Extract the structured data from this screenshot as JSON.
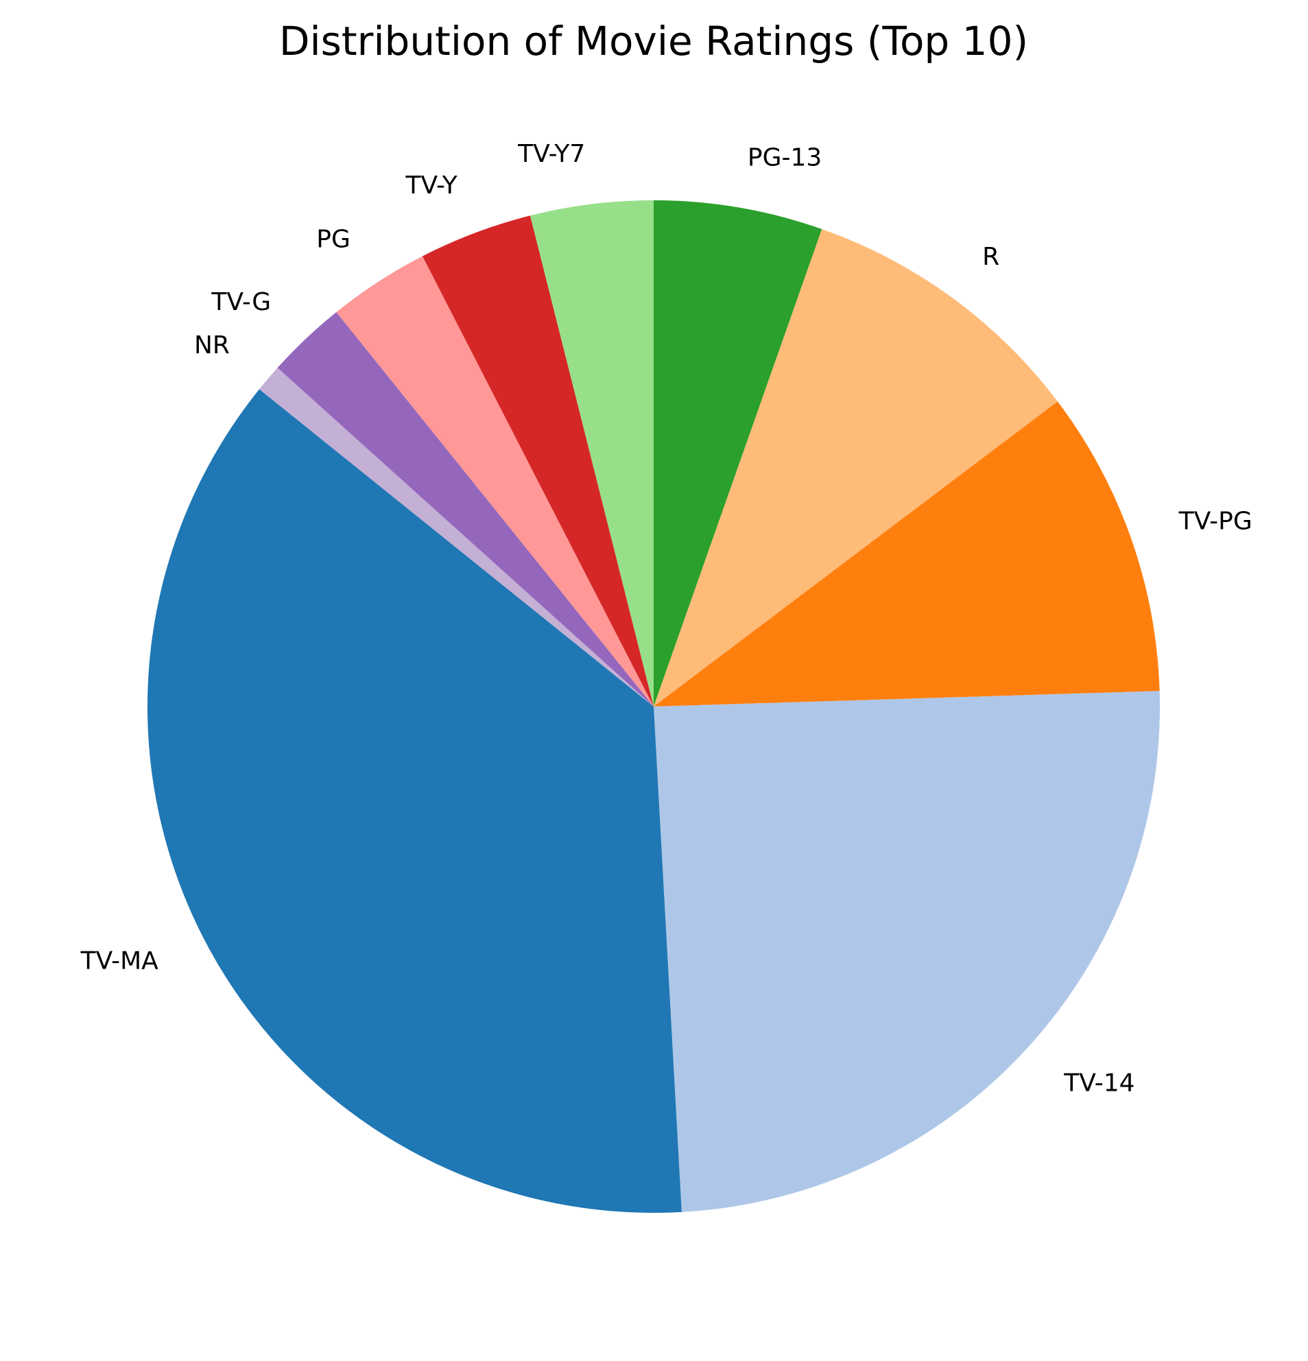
{
  "chart_data": {
    "type": "pie",
    "title": "Distribution of Movie Ratings (Top 10)",
    "start_angle_deg": 90,
    "direction": "clockwise",
    "slices": [
      {
        "label": "PG-13",
        "value": 5.5,
        "color": "#2ca02c"
      },
      {
        "label": "R",
        "value": 9.5,
        "color": "#ffbb78"
      },
      {
        "label": "TV-PG",
        "value": 10.0,
        "color": "#ff7f0e"
      },
      {
        "label": "TV-14",
        "value": 25.1,
        "color": "#aec7e8"
      },
      {
        "label": "TV-MA",
        "value": 37.4,
        "color": "#1f77b4"
      },
      {
        "label": "NR",
        "value": 0.9,
        "color": "#c5b0d5"
      },
      {
        "label": "TV-G",
        "value": 2.6,
        "color": "#9467bd"
      },
      {
        "label": "PG",
        "value": 3.3,
        "color": "#ff9896"
      },
      {
        "label": "TV-Y",
        "value": 3.7,
        "color": "#d62728"
      },
      {
        "label": "TV-Y7",
        "value": 4.0,
        "color": "#98df8a"
      }
    ]
  }
}
